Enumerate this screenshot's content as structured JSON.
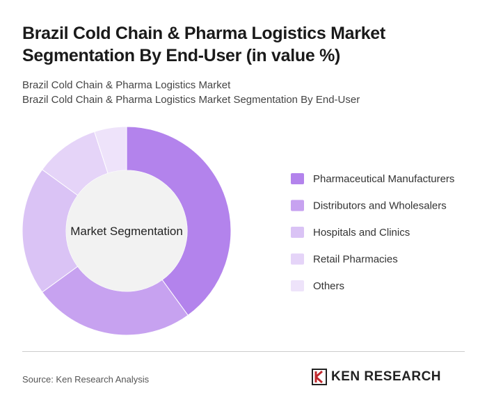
{
  "chart_data": {
    "type": "donut",
    "title": "Brazil Cold Chain & Pharma Logistics Market Segmentation By End-User (in value %)",
    "subtitles": [
      "Brazil Cold Chain & Pharma Logistics Market",
      "Brazil Cold Chain & Pharma Logistics Market Segmentation By End-User"
    ],
    "center_label": "Market Segmentation",
    "categories": [
      "Pharmaceutical Manufacturers",
      "Distributors and Wholesalers",
      "Hospitals and Clinics",
      "Retail Pharmacies",
      "Others"
    ],
    "values": [
      40,
      25,
      20,
      10,
      5
    ],
    "colors": [
      "#b383ec",
      "#c7a2f0",
      "#dac3f5",
      "#e5d4f8",
      "#eee3fa"
    ],
    "legend": "right"
  },
  "source": "Source: Ken Research Analysis",
  "brand": "KEN RESEARCH"
}
